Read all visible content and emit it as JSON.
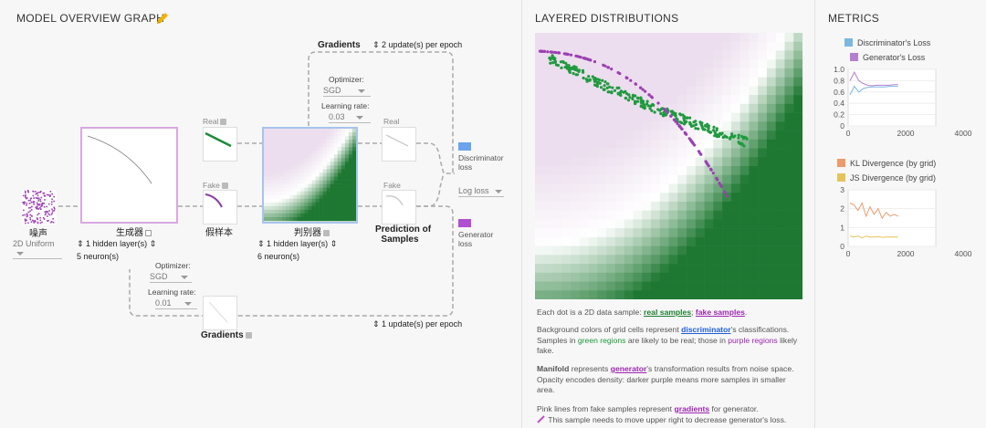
{
  "graph": {
    "title": "MODEL OVERVIEW GRAPH",
    "gradients_top_label": "Gradients",
    "gradients_top_updates": "2 update(s) per epoch",
    "disc_optimizer_label": "Optimizer:",
    "disc_optimizer_value": "SGD",
    "disc_lr_label": "Learning rate:",
    "disc_lr_value": "0.03",
    "real_label": "Real",
    "fake_label": "Fake",
    "real_label_right": "Real",
    "fake_label_right": "Fake",
    "noise_label": "噪声",
    "noise_dist": "2D Uniform",
    "generator_label": "生成器",
    "gen_hidden": "1 hidden layer(s)",
    "gen_neurons": "5 neuron(s)",
    "fake_samples_label": "假样本",
    "discriminator_label": "判别器",
    "disc_hidden": "1 hidden layer(s)",
    "disc_neurons": "6 neuron(s)",
    "prediction_label_1": "Prediction of",
    "prediction_label_2": "Samples",
    "disc_loss_label_1": "Discriminator",
    "disc_loss_label_2": "loss",
    "log_loss": "Log loss",
    "gen_loss_label_1": "Generator",
    "gen_loss_label_2": "loss",
    "gen_optimizer_label": "Optimizer:",
    "gen_optimizer_value": "SGD",
    "gen_lr_label": "Learning rate:",
    "gen_lr_value": "0.01",
    "gradients_bottom_label": "Gradients",
    "gradients_bottom_updates": "1 update(s) per epoch"
  },
  "distributions": {
    "title": "LAYERED DISTRIBUTIONS",
    "p1_prefix": "Each dot is a 2D data sample: ",
    "p1_real": "real samples",
    "p1_sep": "; ",
    "p1_fake": "fake samples",
    "p1_end": ".",
    "p2_a": "Background colors of grid cells represent ",
    "p2_disc": "discriminator",
    "p2_b": "'s classifications. Samples in ",
    "p2_green": "green regions",
    "p2_c": " are likely to be real; those in ",
    "p2_purple": "purple regions",
    "p2_d": " likely fake.",
    "p3_manifold": "Manifold",
    "p3_a": " represents ",
    "p3_gen": "generator",
    "p3_b": "'s transformation results from noise space. Opacity encodes density: darker purple means more samples in smaller area.",
    "p4_a": "Pink lines from fake samples represent ",
    "p4_grad": "gradients",
    "p4_b": " for generator.",
    "p4_note": "This sample needs to move upper right to decrease generator's loss."
  },
  "metrics": {
    "title": "METRICS",
    "chart1_legend": [
      "Discriminator's Loss",
      "Generator's Loss"
    ],
    "chart1_yticks": [
      "1.0",
      "0.8",
      "0.6",
      "0.4",
      "0.2",
      "0"
    ],
    "chart1_xticks": [
      "0",
      "2000",
      "4000"
    ],
    "chart2_legend": [
      "KL Divergence (by grid)",
      "JS Divergence (by grid)"
    ],
    "chart2_yticks": [
      "3",
      "2",
      "1",
      "0"
    ],
    "chart2_xticks": [
      "0",
      "2000",
      "4000"
    ],
    "colors": {
      "disc": "#7ab8e0",
      "gen": "#b57fd0",
      "kl": "#ef9a6b",
      "js": "#e5c45a"
    }
  }
}
